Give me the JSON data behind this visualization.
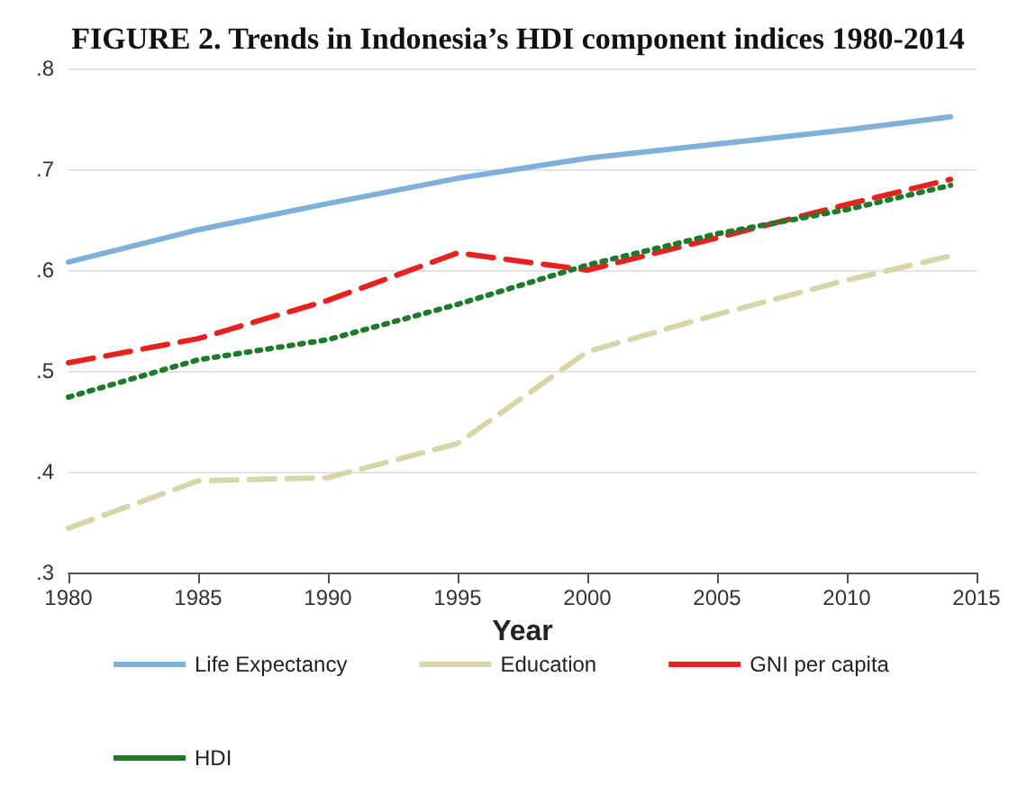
{
  "chart_data": {
    "type": "line",
    "title": "FIGURE 2. Trends in Indonesia’s HDI component indices 1980-2014",
    "xlabel": "Year",
    "x": [
      1980,
      1985,
      1990,
      1995,
      2000,
      2005,
      2010,
      2014
    ],
    "series": [
      {
        "name": "Life Expectancy",
        "color": "#7fb0dc",
        "line_style": "solid",
        "values": [
          0.608,
          0.64,
          0.666,
          0.691,
          0.711,
          0.725,
          0.739,
          0.752
        ]
      },
      {
        "name": "Education",
        "color": "#d8d6a8",
        "line_style": "dashed",
        "values": [
          0.344,
          0.391,
          0.394,
          0.428,
          0.519,
          0.556,
          0.59,
          0.614
        ]
      },
      {
        "name": "GNI per capita",
        "color": "#e8211f",
        "line_style": "dashed",
        "values": [
          0.508,
          0.532,
          0.57,
          0.617,
          0.6,
          0.632,
          0.665,
          0.69
        ]
      },
      {
        "name": "HDI",
        "color": "#1e7a2a",
        "line_style": "dotted",
        "values": [
          0.474,
          0.511,
          0.531,
          0.566,
          0.605,
          0.636,
          0.66,
          0.684
        ]
      }
    ],
    "xlim": [
      1980,
      2015
    ],
    "xticks": [
      1980,
      1985,
      1990,
      1995,
      2000,
      2005,
      2010,
      2015
    ],
    "ylim": [
      0.3,
      0.8
    ],
    "yticks": [
      {
        "value": 0.3,
        "label": ".3"
      },
      {
        "value": 0.4,
        "label": ".4"
      },
      {
        "value": 0.5,
        "label": ".5"
      },
      {
        "value": 0.6,
        "label": ".6"
      },
      {
        "value": 0.7,
        "label": ".7"
      },
      {
        "value": 0.8,
        "label": ".8"
      }
    ],
    "grid": "y",
    "legend": "bottom",
    "marker": "none"
  }
}
